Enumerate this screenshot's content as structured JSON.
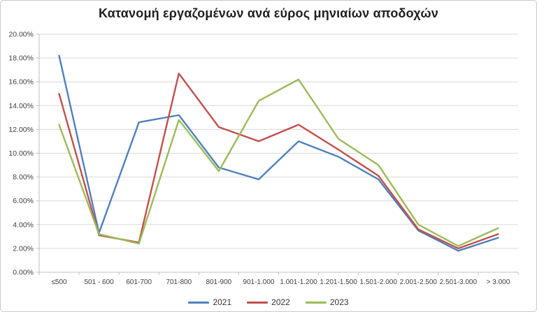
{
  "chart": {
    "title": "Κατανομή εργαζομένων ανά εύρος μηνιαίων αποδοχών"
  },
  "chart_data": {
    "type": "line",
    "title": "Κατανομή εργαζομένων ανά εύρος μηνιαίων αποδοχών",
    "categories": [
      "≤500",
      "501 - 600",
      "601-700",
      "701-800",
      "801-900",
      "901-1.000",
      "1.001-1.200",
      "1.201-1.500",
      "1.501-2.000",
      "2.001-2.500",
      "2.501-3.000",
      "> 3.000"
    ],
    "series": [
      {
        "name": "2021",
        "color": "#4F81BD",
        "values": [
          18.2,
          3.3,
          12.6,
          13.2,
          8.8,
          7.8,
          11.0,
          9.7,
          7.8,
          3.5,
          1.8,
          2.9
        ]
      },
      {
        "name": "2022",
        "color": "#C0504D",
        "values": [
          15.0,
          3.1,
          2.5,
          16.7,
          12.2,
          11.0,
          12.4,
          10.3,
          8.1,
          3.6,
          2.0,
          3.2
        ]
      },
      {
        "name": "2023",
        "color": "#9BBB59",
        "values": [
          12.4,
          3.2,
          2.4,
          12.8,
          8.5,
          14.4,
          16.2,
          11.2,
          9.0,
          4.0,
          2.2,
          3.7
        ]
      }
    ],
    "xlabel": "",
    "ylabel": "",
    "ylim": [
      0,
      20
    ],
    "ytick_values": [
      0,
      2,
      4,
      6,
      8,
      10,
      12,
      14,
      16,
      18,
      20
    ],
    "ytick_labels": [
      "0.00%",
      "2.00%",
      "4.00%",
      "6.00%",
      "8.00%",
      "10.00%",
      "12.00%",
      "14.00%",
      "16.00%",
      "18.00%",
      "20.00%"
    ],
    "grid": true,
    "legend_position": "bottom"
  },
  "colors": {
    "gridline": "#D9D9D9",
    "axis": "#BFBFBF",
    "tick_text": "#3F3F3F",
    "background": "#FFFFFF"
  }
}
